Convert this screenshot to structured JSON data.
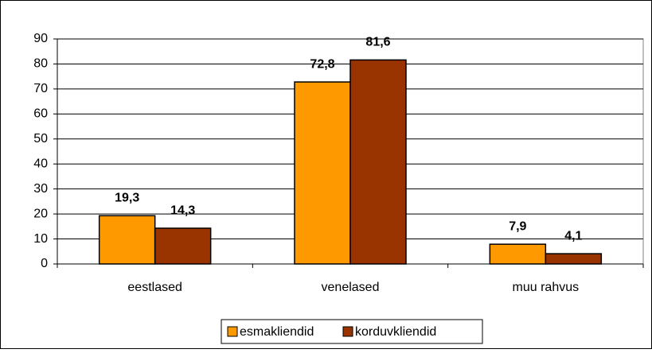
{
  "chart_data": {
    "type": "bar",
    "categories": [
      "eestlased",
      "venelased",
      "muu rahvus"
    ],
    "series": [
      {
        "name": "esmakliendid",
        "color": "#ff9900",
        "values": [
          19.3,
          72.8,
          7.9
        ],
        "value_labels": [
          "19,3",
          "72,8",
          "7,9"
        ]
      },
      {
        "name": "korduvkliendid",
        "color": "#993300",
        "values": [
          14.3,
          81.6,
          4.1
        ],
        "value_labels": [
          "14,3",
          "81,6",
          "4,1"
        ]
      }
    ],
    "ylim": [
      0,
      90
    ],
    "yticks": [
      0,
      10,
      20,
      30,
      40,
      50,
      60,
      70,
      80,
      90
    ],
    "grid": true,
    "legend": "bottom"
  }
}
